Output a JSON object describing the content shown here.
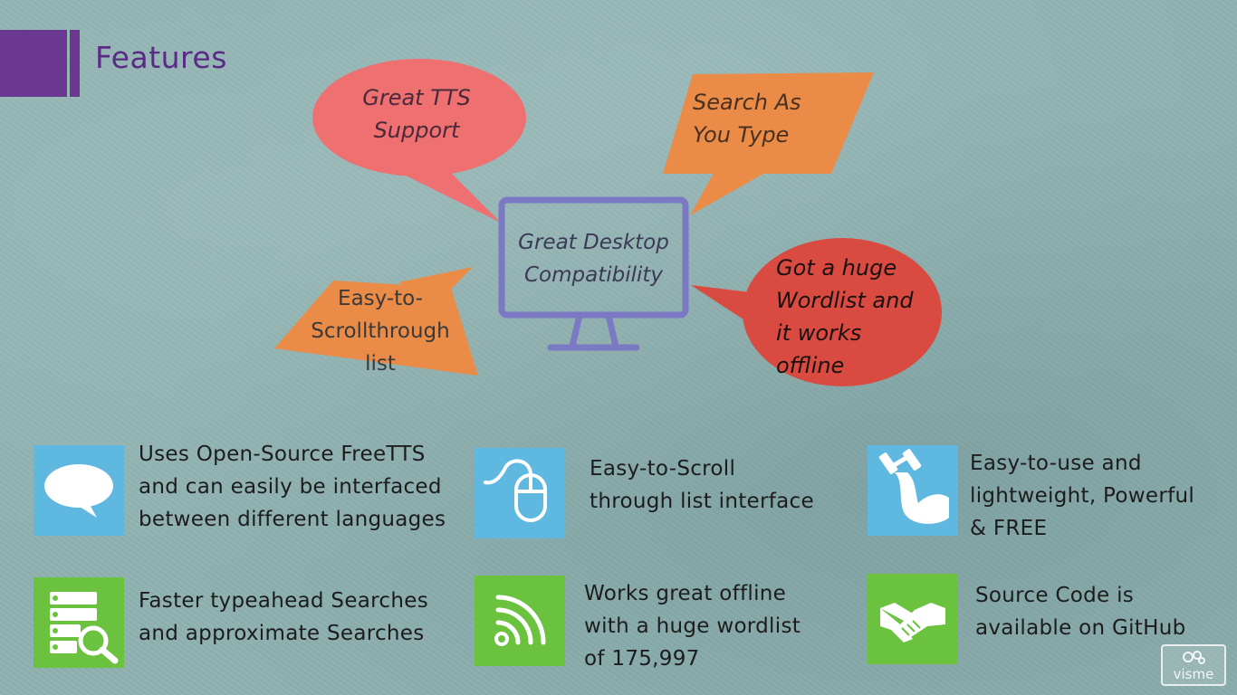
{
  "title": "Features",
  "diagram": {
    "center": "Great Desktop\nCompatibility",
    "bubbles": {
      "tts": "Great TTS\nSupport",
      "search": "Search As\nYou Type",
      "scroll": "Easy-to-\nScrollthrough\nlist",
      "wordlist": "Got a huge\nWordlist and\nit works\noffline"
    },
    "colors": {
      "tts": "#ee7070",
      "search": "#ea8c48",
      "scroll": "#ea8c48",
      "wordlist": "#d94a40",
      "monitor": "#7b78c4"
    }
  },
  "features": [
    {
      "icon": "speech-bubble-icon",
      "text": "Uses Open-Source FreeTTS\nand can easily be interfaced\nbetween different languages"
    },
    {
      "icon": "mouse-icon",
      "text": "Easy-to-Scroll\nthrough list interface"
    },
    {
      "icon": "strong-arm-icon",
      "text": "Easy-to-use and\nlightweight, Powerful\n& FREE"
    },
    {
      "icon": "server-search-icon",
      "text": "Faster typeahead Searches\nand approximate Searches"
    },
    {
      "icon": "wifi-signal-icon",
      "text": "Works great offline\nwith a huge wordlist\nof 175,997"
    },
    {
      "icon": "handshake-icon",
      "text": "Source Code is\navailable on GitHub"
    }
  ],
  "watermark": "visme"
}
